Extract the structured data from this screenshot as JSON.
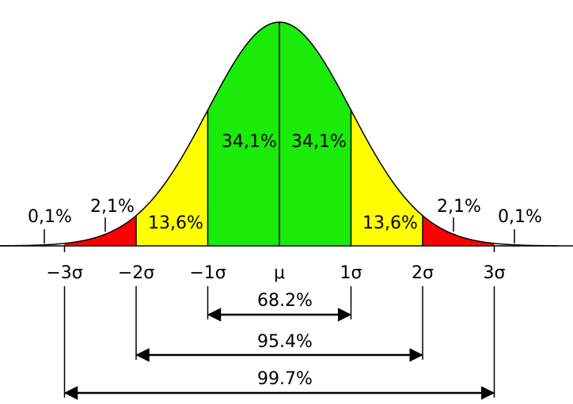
{
  "curve_labels": [
    "34,1%",
    "34,1%",
    "13,6%",
    "13,6%",
    "2,1%",
    "2,1%",
    "0,1%",
    "0,1%"
  ],
  "axis_labels": [
    "−3σ",
    "−2σ",
    "−1σ",
    "μ",
    "1σ",
    "2σ",
    "3σ"
  ],
  "ranges": [
    "68.2%",
    "95.4%",
    "99.7%"
  ]
}
